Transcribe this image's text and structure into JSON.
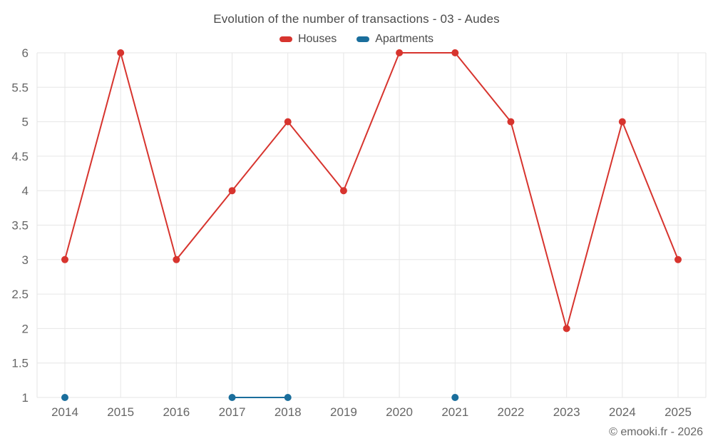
{
  "title": "Evolution of the number of transactions - 03 - Audes",
  "footer": "© emooki.fr - 2026",
  "colors": {
    "grid": "#e6e6e6",
    "axis_text": "#666666",
    "title_text": "#4a4a4a"
  },
  "chart_data": {
    "type": "line",
    "title": "Evolution of the number of transactions - 03 - Audes",
    "categories": [
      "2014",
      "2015",
      "2016",
      "2017",
      "2018",
      "2019",
      "2020",
      "2021",
      "2022",
      "2023",
      "2024",
      "2025"
    ],
    "series": [
      {
        "name": "Houses",
        "color": "#d7342e",
        "values": [
          3,
          6,
          3,
          4,
          5,
          4,
          6,
          6,
          5,
          2,
          5,
          3
        ]
      },
      {
        "name": "Apartments",
        "color": "#1a6e9c",
        "values": [
          1,
          null,
          null,
          1,
          1,
          null,
          null,
          1,
          null,
          null,
          null,
          null
        ]
      }
    ],
    "xlabel": "",
    "ylabel": "",
    "ylim": [
      1,
      6
    ],
    "ytick_step": 0.5,
    "grid": true,
    "legend_position": "top"
  }
}
